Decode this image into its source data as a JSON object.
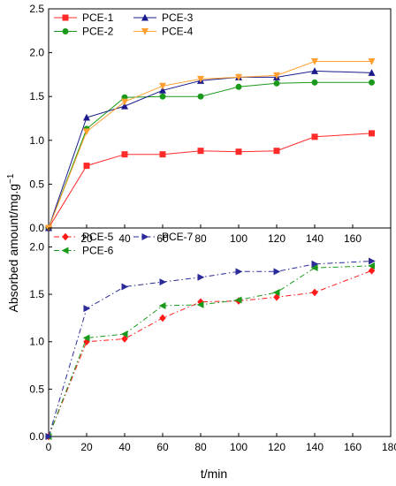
{
  "chart_data": {
    "type": "line",
    "ylabel": "Absorbed amount/mg.g",
    "ylabel_exponent": "−1",
    "xlabel": "t/min",
    "panels": [
      {
        "id": "top",
        "ylim": [
          0,
          2.5
        ],
        "yticks": [
          "0.0",
          "0.5",
          "1.0",
          "1.5",
          "2.0",
          "2.5"
        ],
        "xlim": [
          0,
          180
        ],
        "xticks": [
          "20",
          "40",
          "60",
          "80",
          "100",
          "120",
          "140",
          "160"
        ],
        "legend": "top-left",
        "series": [
          {
            "name": "PCE-1",
            "color": "#ff2a2a",
            "marker": "square",
            "dash": "solid",
            "x": [
              0,
              20,
              40,
              60,
              80,
              100,
              120,
              140,
              170
            ],
            "values": [
              0,
              0.71,
              0.84,
              0.84,
              0.88,
              0.87,
              0.88,
              1.04,
              1.08
            ]
          },
          {
            "name": "PCE-2",
            "color": "#1a9a1a",
            "marker": "circle",
            "dash": "solid",
            "x": [
              0,
              20,
              40,
              60,
              80,
              100,
              120,
              140,
              170
            ],
            "values": [
              0,
              1.13,
              1.49,
              1.5,
              1.5,
              1.61,
              1.65,
              1.66,
              1.66
            ]
          },
          {
            "name": "PCE-3",
            "color": "#1a1a8c",
            "marker": "triangle-up",
            "dash": "solid",
            "x": [
              0,
              20,
              40,
              60,
              80,
              100,
              120,
              140,
              170
            ],
            "values": [
              0,
              1.26,
              1.39,
              1.57,
              1.68,
              1.72,
              1.72,
              1.79,
              1.77
            ]
          },
          {
            "name": "PCE-4",
            "color": "#ffa030",
            "marker": "triangle-down",
            "dash": "solid",
            "x": [
              0,
              20,
              40,
              60,
              80,
              100,
              120,
              140,
              170
            ],
            "values": [
              0,
              1.1,
              1.44,
              1.62,
              1.7,
              1.72,
              1.74,
              1.9,
              1.9
            ]
          }
        ]
      },
      {
        "id": "bottom",
        "ylim": [
          0,
          2.2
        ],
        "yticks": [
          "0.0",
          "0.5",
          "1.0",
          "1.5",
          "2.0"
        ],
        "xlim": [
          0,
          180
        ],
        "xticks": [
          "0",
          "20",
          "40",
          "60",
          "80",
          "100",
          "120",
          "140",
          "160",
          "180"
        ],
        "legend": "top-left",
        "series": [
          {
            "name": "PCE-5",
            "color": "#ff1a1a",
            "marker": "diamond",
            "dash": "dashdot",
            "x": [
              0,
              20,
              40,
              60,
              80,
              100,
              120,
              140,
              170
            ],
            "values": [
              0,
              1.0,
              1.03,
              1.25,
              1.42,
              1.43,
              1.47,
              1.52,
              1.75
            ]
          },
          {
            "name": "PCE-6",
            "color": "#1a9a1a",
            "marker": "triangle-left",
            "dash": "dashdot",
            "x": [
              0,
              20,
              40,
              60,
              80,
              100,
              120,
              140,
              170
            ],
            "values": [
              0,
              1.04,
              1.08,
              1.38,
              1.39,
              1.44,
              1.52,
              1.78,
              1.8
            ]
          },
          {
            "name": "PCE-7",
            "color": "#2a2a9a",
            "marker": "triangle-right",
            "dash": "dashdot",
            "x": [
              0,
              20,
              40,
              60,
              80,
              100,
              120,
              140,
              170
            ],
            "values": [
              0,
              1.35,
              1.58,
              1.63,
              1.68,
              1.74,
              1.74,
              1.82,
              1.85
            ]
          }
        ]
      }
    ]
  }
}
